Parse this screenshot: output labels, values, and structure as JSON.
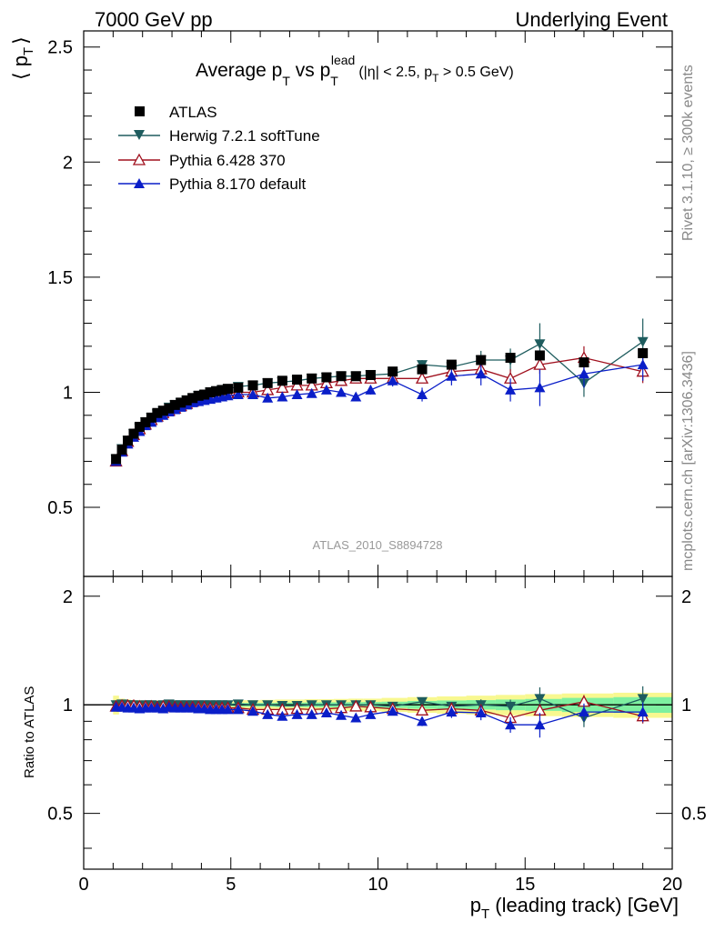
{
  "header": {
    "left": "7000 GeV pp",
    "right": "Underlying Event"
  },
  "side_labels": {
    "rivet": "Rivet 3.1.10, ≥ 300k events",
    "mcplots": "mcplots.cern.ch [arXiv:1306.3436]"
  },
  "watermark": "ATLAS_2010_S8894728",
  "colors": {
    "atlas": "#000000",
    "herwig": "#1e5c5e",
    "pythia6": "#a0101e",
    "pythia8": "#0a1ec8",
    "band_inner": "#7ef0a0",
    "band_outer": "#f8f890"
  },
  "chart_data": [
    {
      "type": "scatter",
      "title_parts": {
        "prefix": "Average p",
        "prefix_sub": "T",
        "mid": " vs p",
        "mid_sub": "T",
        "mid_sup": "lead",
        "cond_a": "(|η| < 2.5, p",
        "cond_sub": "T",
        "cond_b": " > 0.5 GeV)"
      },
      "ylabel_parts": {
        "left": "⟨ p",
        "sub": "T",
        "right": "⟩"
      },
      "xlim": [
        0,
        20
      ],
      "ylim": [
        0.2,
        2.57
      ],
      "y_ticks": [
        "0.5",
        "1",
        "1.5",
        "2",
        "2.5"
      ],
      "legend": [
        "ATLAS",
        "Herwig 7.2.1 softTune",
        "Pythia 6.428 370",
        "Pythia 8.170 default"
      ],
      "legend_position": "top-left",
      "x": [
        1.1,
        1.3,
        1.5,
        1.7,
        1.9,
        2.1,
        2.3,
        2.5,
        2.7,
        2.9,
        3.1,
        3.3,
        3.5,
        3.7,
        3.9,
        4.1,
        4.3,
        4.5,
        4.7,
        4.9,
        5.25,
        5.75,
        6.25,
        6.75,
        7.25,
        7.75,
        8.25,
        8.75,
        9.25,
        9.75,
        10.5,
        11.5,
        12.5,
        13.5,
        14.5,
        15.5,
        17.0,
        19.0
      ],
      "series": [
        {
          "name": "ATLAS",
          "marker": "square",
          "values": [
            0.71,
            0.75,
            0.79,
            0.82,
            0.85,
            0.87,
            0.89,
            0.91,
            0.92,
            0.93,
            0.945,
            0.955,
            0.965,
            0.975,
            0.985,
            0.99,
            1.0,
            1.005,
            1.01,
            1.015,
            1.02,
            1.03,
            1.04,
            1.05,
            1.055,
            1.06,
            1.065,
            1.07,
            1.07,
            1.075,
            1.09,
            1.1,
            1.12,
            1.14,
            1.15,
            1.16,
            1.13,
            1.17
          ]
        },
        {
          "name": "Herwig 7.2.1 softTune",
          "marker": "triangle-down",
          "values": [
            0.71,
            0.755,
            0.79,
            0.82,
            0.845,
            0.87,
            0.89,
            0.905,
            0.92,
            0.935,
            0.945,
            0.955,
            0.965,
            0.975,
            0.985,
            0.99,
            1.0,
            1.005,
            1.01,
            1.015,
            1.025,
            1.03,
            1.04,
            1.045,
            1.05,
            1.06,
            1.065,
            1.07,
            1.07,
            1.075,
            1.08,
            1.12,
            1.11,
            1.14,
            1.14,
            1.21,
            1.04,
            1.22
          ],
          "errors": [
            0.003,
            0.003,
            0.003,
            0.003,
            0.003,
            0.003,
            0.003,
            0.003,
            0.003,
            0.003,
            0.003,
            0.003,
            0.003,
            0.003,
            0.003,
            0.003,
            0.003,
            0.003,
            0.003,
            0.003,
            0.004,
            0.004,
            0.005,
            0.006,
            0.007,
            0.008,
            0.009,
            0.01,
            0.012,
            0.013,
            0.015,
            0.02,
            0.025,
            0.04,
            0.05,
            0.09,
            0.06,
            0.1
          ]
        },
        {
          "name": "Pythia 6.428 370",
          "marker": "triangle-up-open",
          "values": [
            0.7,
            0.745,
            0.785,
            0.815,
            0.84,
            0.86,
            0.88,
            0.895,
            0.91,
            0.92,
            0.93,
            0.94,
            0.95,
            0.96,
            0.97,
            0.975,
            0.98,
            0.985,
            0.99,
            0.995,
            1.0,
            1.0,
            1.01,
            1.02,
            1.03,
            1.03,
            1.04,
            1.05,
            1.06,
            1.06,
            1.06,
            1.06,
            1.09,
            1.1,
            1.06,
            1.12,
            1.15,
            1.09
          ],
          "errors": [
            0.003,
            0.003,
            0.003,
            0.003,
            0.003,
            0.003,
            0.003,
            0.003,
            0.003,
            0.003,
            0.003,
            0.003,
            0.003,
            0.003,
            0.003,
            0.003,
            0.003,
            0.003,
            0.003,
            0.003,
            0.004,
            0.005,
            0.006,
            0.007,
            0.008,
            0.009,
            0.01,
            0.011,
            0.012,
            0.013,
            0.015,
            0.02,
            0.025,
            0.03,
            0.04,
            0.04,
            0.05,
            0.05
          ]
        },
        {
          "name": "Pythia 8.170 default",
          "marker": "triangle-up",
          "values": [
            0.7,
            0.74,
            0.775,
            0.805,
            0.83,
            0.855,
            0.87,
            0.89,
            0.9,
            0.915,
            0.925,
            0.935,
            0.945,
            0.955,
            0.96,
            0.965,
            0.97,
            0.975,
            0.98,
            0.985,
            0.99,
            0.99,
            0.975,
            0.98,
            0.99,
            0.995,
            1.01,
            1.0,
            0.98,
            1.01,
            1.05,
            0.99,
            1.07,
            1.08,
            1.01,
            1.02,
            1.08,
            1.12
          ],
          "errors": [
            0.003,
            0.003,
            0.003,
            0.003,
            0.003,
            0.003,
            0.003,
            0.003,
            0.003,
            0.003,
            0.003,
            0.003,
            0.003,
            0.003,
            0.003,
            0.003,
            0.003,
            0.003,
            0.003,
            0.003,
            0.005,
            0.006,
            0.007,
            0.008,
            0.01,
            0.012,
            0.014,
            0.015,
            0.018,
            0.02,
            0.025,
            0.03,
            0.04,
            0.05,
            0.05,
            0.08,
            0.06,
            0.07
          ]
        }
      ]
    },
    {
      "type": "scatter",
      "ylabel": "Ratio to ATLAS",
      "xlabel_parts": {
        "left": "p",
        "sub": "T",
        "right": " (leading track) [GeV]"
      },
      "xlim": [
        0,
        20
      ],
      "ylim": [
        0.35,
        2.27
      ],
      "x_ticks": [
        "0",
        "5",
        "10",
        "15",
        "20"
      ],
      "y_ticks": [
        "0.5",
        "1",
        "2"
      ],
      "reference_line": 1.0,
      "band_inner_halfwidth": [
        0.02,
        0.012,
        0.01,
        0.01,
        0.01,
        0.01,
        0.01,
        0.01,
        0.01,
        0.01,
        0.01,
        0.01,
        0.01,
        0.01,
        0.01,
        0.01,
        0.01,
        0.01,
        0.01,
        0.01,
        0.012,
        0.012,
        0.012,
        0.014,
        0.014,
        0.015,
        0.016,
        0.016,
        0.017,
        0.018,
        0.02,
        0.025,
        0.028,
        0.03,
        0.034,
        0.038,
        0.045,
        0.05
      ],
      "band_outer_halfwidth": [
        0.06,
        0.04,
        0.035,
        0.03,
        0.03,
        0.028,
        0.028,
        0.028,
        0.028,
        0.028,
        0.028,
        0.028,
        0.028,
        0.028,
        0.028,
        0.028,
        0.028,
        0.028,
        0.028,
        0.028,
        0.03,
        0.03,
        0.032,
        0.034,
        0.034,
        0.036,
        0.036,
        0.038,
        0.04,
        0.04,
        0.045,
        0.05,
        0.055,
        0.06,
        0.065,
        0.07,
        0.075,
        0.08
      ],
      "series": [
        {
          "name": "Herwig 7.2.1 softTune",
          "values": [
            1.0,
            1.005,
            1.0,
            1.0,
            0.995,
            1.0,
            1.0,
            0.995,
            1.0,
            1.005,
            1.0,
            1.0,
            1.0,
            1.0,
            1.0,
            1.0,
            1.0,
            1.0,
            1.0,
            1.0,
            1.005,
            1.0,
            1.0,
            0.995,
            0.995,
            1.0,
            1.0,
            1.0,
            1.0,
            1.0,
            0.99,
            1.02,
            0.99,
            1.0,
            0.99,
            1.04,
            0.92,
            1.04
          ]
        },
        {
          "name": "Pythia 6.428 370",
          "values": [
            0.99,
            0.995,
            0.995,
            0.995,
            0.99,
            0.99,
            0.99,
            0.985,
            0.99,
            0.99,
            0.985,
            0.985,
            0.985,
            0.985,
            0.985,
            0.985,
            0.98,
            0.98,
            0.98,
            0.98,
            0.98,
            0.97,
            0.97,
            0.97,
            0.975,
            0.97,
            0.975,
            0.98,
            0.99,
            0.985,
            0.975,
            0.965,
            0.975,
            0.965,
            0.92,
            0.965,
            1.02,
            0.93
          ]
        },
        {
          "name": "Pythia 8.170 default",
          "values": [
            0.985,
            0.985,
            0.98,
            0.98,
            0.975,
            0.98,
            0.98,
            0.98,
            0.975,
            0.985,
            0.98,
            0.98,
            0.98,
            0.98,
            0.975,
            0.975,
            0.97,
            0.97,
            0.97,
            0.97,
            0.97,
            0.96,
            0.94,
            0.93,
            0.94,
            0.94,
            0.95,
            0.935,
            0.92,
            0.94,
            0.96,
            0.9,
            0.955,
            0.95,
            0.88,
            0.88,
            0.955,
            0.955
          ]
        }
      ]
    }
  ]
}
